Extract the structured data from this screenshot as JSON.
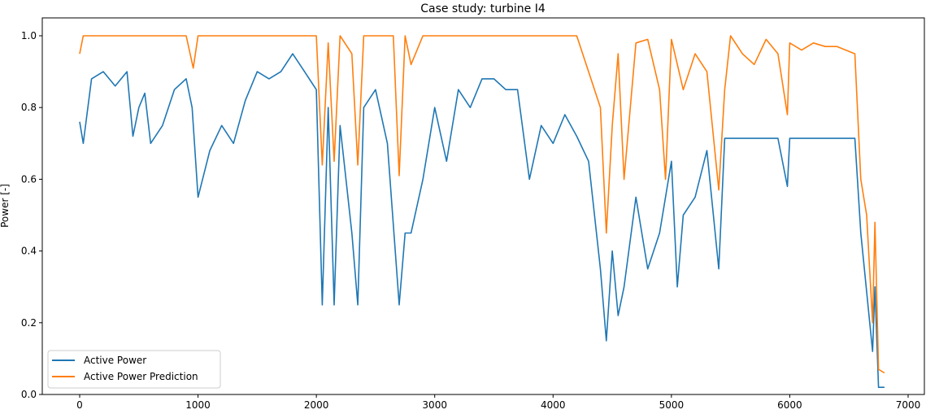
{
  "chart_data": {
    "type": "line",
    "title": "Case study: turbine I4",
    "xlabel": "",
    "ylabel": "Power [-]",
    "xlim": [
      -400,
      7150
    ],
    "ylim": [
      0,
      1.05
    ],
    "xticks": [
      0,
      1000,
      2000,
      3000,
      4000,
      5000,
      6000,
      7000
    ],
    "yticks": [
      0.0,
      0.2,
      0.4,
      0.6,
      0.8,
      1.0
    ],
    "xtick_labels": [
      "0",
      "1000",
      "2000",
      "3000",
      "4000",
      "5000",
      "6000",
      "7000"
    ],
    "ytick_labels": [
      "0.0",
      "0.2",
      "0.4",
      "0.6",
      "0.8",
      "1.0"
    ],
    "grid": false,
    "legend_position": "bottom-left",
    "series": [
      {
        "name": "Active Power",
        "color": "#1f77b4",
        "x": [
          0,
          30,
          100,
          200,
          300,
          400,
          450,
          500,
          550,
          600,
          700,
          800,
          900,
          950,
          1000,
          1100,
          1200,
          1300,
          1400,
          1500,
          1600,
          1700,
          1800,
          1900,
          2000,
          2050,
          2100,
          2150,
          2200,
          2300,
          2350,
          2400,
          2500,
          2600,
          2700,
          2750,
          2800,
          2900,
          3000,
          3100,
          3200,
          3300,
          3400,
          3500,
          3600,
          3700,
          3800,
          3900,
          4000,
          4100,
          4200,
          4300,
          4400,
          4450,
          4500,
          4550,
          4600,
          4700,
          4800,
          4900,
          5000,
          5050,
          5100,
          5200,
          5300,
          5400,
          5450,
          5500,
          5900,
          5980,
          6000,
          6550,
          6600,
          6700,
          6720,
          6750,
          6800
        ],
        "y": [
          0.76,
          0.7,
          0.88,
          0.9,
          0.86,
          0.9,
          0.72,
          0.8,
          0.84,
          0.7,
          0.75,
          0.85,
          0.88,
          0.8,
          0.55,
          0.68,
          0.75,
          0.7,
          0.82,
          0.9,
          0.88,
          0.9,
          0.95,
          0.9,
          0.85,
          0.25,
          0.8,
          0.25,
          0.75,
          0.45,
          0.25,
          0.8,
          0.85,
          0.7,
          0.25,
          0.45,
          0.45,
          0.6,
          0.8,
          0.65,
          0.85,
          0.8,
          0.88,
          0.88,
          0.85,
          0.85,
          0.6,
          0.75,
          0.7,
          0.78,
          0.72,
          0.65,
          0.35,
          0.15,
          0.4,
          0.22,
          0.3,
          0.55,
          0.35,
          0.45,
          0.65,
          0.3,
          0.5,
          0.55,
          0.68,
          0.35,
          0.714,
          0.714,
          0.714,
          0.58,
          0.714,
          0.714,
          0.45,
          0.12,
          0.3,
          0.02,
          0.02
        ]
      },
      {
        "name": "Active Power Prediction",
        "color": "#ff7f0e",
        "x": [
          0,
          30,
          900,
          960,
          1000,
          2000,
          2050,
          2100,
          2150,
          2200,
          2300,
          2350,
          2400,
          2650,
          2700,
          2750,
          2800,
          2900,
          4200,
          4400,
          4450,
          4500,
          4550,
          4600,
          4700,
          4800,
          4900,
          4950,
          5000,
          5100,
          5200,
          5300,
          5400,
          5450,
          5500,
          5600,
          5700,
          5800,
          5900,
          5980,
          6000,
          6100,
          6200,
          6300,
          6400,
          6550,
          6600,
          6650,
          6700,
          6720,
          6750,
          6800
        ],
        "y": [
          0.95,
          1.0,
          1.0,
          0.91,
          1.0,
          1.0,
          0.64,
          0.98,
          0.65,
          1.0,
          0.95,
          0.64,
          1.0,
          1.0,
          0.61,
          1.0,
          0.92,
          1.0,
          1.0,
          0.8,
          0.45,
          0.75,
          0.95,
          0.6,
          0.98,
          0.99,
          0.85,
          0.6,
          0.99,
          0.85,
          0.95,
          0.9,
          0.57,
          0.85,
          1.0,
          0.95,
          0.92,
          0.99,
          0.95,
          0.78,
          0.98,
          0.96,
          0.98,
          0.97,
          0.97,
          0.95,
          0.6,
          0.5,
          0.2,
          0.48,
          0.07,
          0.06
        ]
      }
    ]
  }
}
